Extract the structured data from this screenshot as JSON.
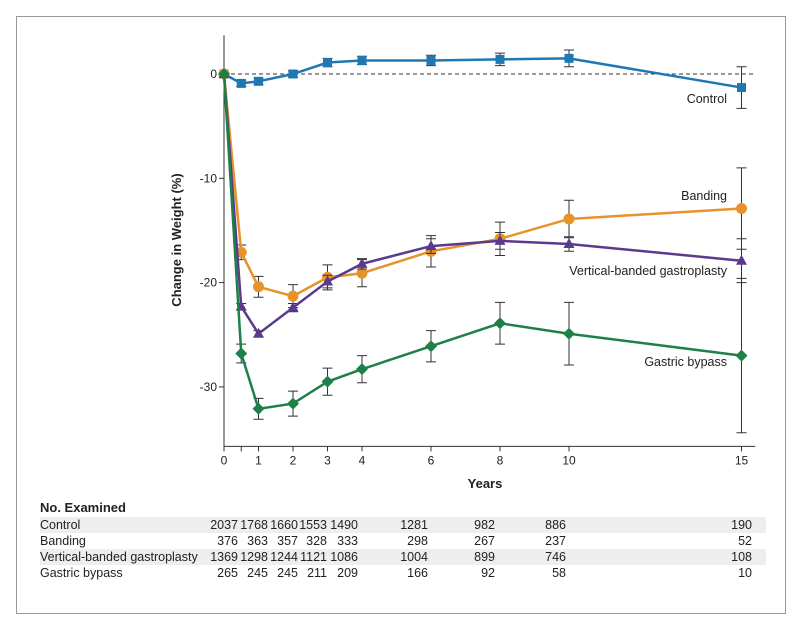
{
  "chart_data": {
    "type": "line",
    "title": "",
    "xlabel": "Years",
    "ylabel": "Change in Weight (%)",
    "xlim": [
      0,
      15.4
    ],
    "ylim": [
      -35.7,
      3.7
    ],
    "xticks": [
      0,
      0.5,
      1,
      2,
      3,
      4,
      6,
      8,
      10,
      15
    ],
    "xtick_labels": [
      "0",
      "",
      "1",
      "2",
      "3",
      "4",
      "6",
      "8",
      "10",
      "15"
    ],
    "yticks": [
      0,
      -10,
      -20,
      -30
    ],
    "ytick_labels": [
      "0",
      "-10",
      "-20",
      "-30"
    ],
    "reference_line": 0,
    "x": [
      0,
      0.5,
      1,
      2,
      3,
      4,
      6,
      8,
      10,
      15
    ],
    "series": [
      {
        "name": "Control",
        "color": "#1f77b4",
        "marker": "square",
        "values": [
          0,
          -0.9,
          -0.7,
          0,
          1.1,
          1.3,
          1.3,
          1.4,
          1.5,
          -1.3
        ],
        "err": [
          0,
          0.3,
          0.3,
          0.3,
          0.4,
          0.4,
          0.5,
          0.6,
          0.8,
          2.0
        ]
      },
      {
        "name": "Banding",
        "color": "#e8922a",
        "marker": "circle",
        "values": [
          0,
          -17.1,
          -20.4,
          -21.3,
          -19.5,
          -19.1,
          -17.0,
          -15.8,
          -13.9,
          -12.9
        ],
        "err": [
          0,
          0.7,
          1.0,
          1.1,
          1.2,
          1.3,
          1.5,
          1.6,
          1.8,
          3.9
        ]
      },
      {
        "name": "Vertical-banded gastroplasty",
        "color": "#5b3a8e",
        "marker": "triangle",
        "values": [
          0,
          -22.3,
          -24.9,
          -22.4,
          -19.9,
          -18.2,
          -16.5,
          -16.0,
          -16.3,
          -17.9
        ],
        "err": [
          0,
          0.3,
          0.3,
          0.4,
          0.6,
          0.5,
          0.7,
          0.8,
          0.7,
          2.1
        ]
      },
      {
        "name": "Gastric bypass",
        "color": "#1e8049",
        "marker": "diamond",
        "values": [
          0,
          -26.8,
          -32.1,
          -31.6,
          -29.5,
          -28.3,
          -26.1,
          -23.9,
          -24.9,
          -27.0
        ],
        "err": [
          0,
          0.9,
          1.0,
          1.2,
          1.3,
          1.3,
          1.5,
          2.0,
          3.0,
          7.4
        ]
      }
    ]
  },
  "table": {
    "title": "No. Examined",
    "rows": [
      {
        "label": "Control",
        "values": [
          "2037",
          "1768",
          "1660",
          "1553",
          "1490",
          "1281",
          "982",
          "886",
          "190"
        ]
      },
      {
        "label": "Banding",
        "values": [
          "376",
          "363",
          "357",
          "328",
          "333",
          "298",
          "267",
          "237",
          "52"
        ]
      },
      {
        "label": "Vertical-banded gastroplasty",
        "values": [
          "1369",
          "1298",
          "1244",
          "1121",
          "1086",
          "1004",
          "899",
          "746",
          "108"
        ]
      },
      {
        "label": "Gastric bypass",
        "values": [
          "265",
          "245",
          "245",
          "211",
          "209",
          "166",
          "92",
          "58",
          "10"
        ]
      }
    ]
  }
}
